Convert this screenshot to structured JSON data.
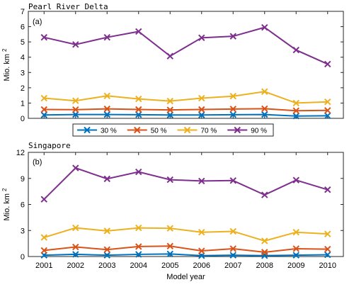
{
  "chart_data": [
    {
      "type": "line",
      "title": "Pearl River Delta",
      "panel_label": "(a)",
      "xlabel": "",
      "ylabel": "Mio. km",
      "ylabel_superscript": "2",
      "x": [
        2001,
        2002,
        2003,
        2004,
        2005,
        2006,
        2007,
        2008,
        2009,
        2010
      ],
      "xlim": [
        2000.5,
        2010.5
      ],
      "ylim": [
        0,
        7
      ],
      "yticks": [
        0,
        1,
        2,
        3,
        4,
        5,
        6,
        7
      ],
      "grid": false,
      "marker": "x",
      "legend_position": "bottom-center",
      "series": [
        {
          "name": "30 %",
          "color": "#0072BD",
          "values": [
            0.22,
            0.25,
            0.25,
            0.24,
            0.22,
            0.22,
            0.24,
            0.25,
            0.15,
            0.17
          ]
        },
        {
          "name": "50 %",
          "color": "#D95319",
          "values": [
            0.58,
            0.57,
            0.62,
            0.58,
            0.55,
            0.58,
            0.61,
            0.63,
            0.5,
            0.52
          ]
        },
        {
          "name": "70 %",
          "color": "#EDB120",
          "values": [
            1.32,
            1.15,
            1.47,
            1.27,
            1.13,
            1.32,
            1.45,
            1.75,
            1.0,
            1.08
          ]
        },
        {
          "name": "90 %",
          "color": "#7E2F8E",
          "values": [
            5.3,
            4.83,
            5.3,
            5.68,
            4.07,
            5.27,
            5.37,
            5.95,
            4.47,
            3.55
          ]
        }
      ]
    },
    {
      "type": "line",
      "title": "Singapore",
      "panel_label": "(b)",
      "xlabel": "Model year",
      "ylabel": "Mio. km",
      "ylabel_superscript": "2",
      "x": [
        2001,
        2002,
        2003,
        2004,
        2005,
        2006,
        2007,
        2008,
        2009,
        2010
      ],
      "xlim": [
        2000.5,
        2010.5
      ],
      "ylim": [
        0,
        12
      ],
      "yticks": [
        0,
        3,
        6,
        9,
        12
      ],
      "xticks": [
        "2001",
        "2002",
        "2003",
        "2004",
        "2005",
        "2006",
        "2007",
        "2008",
        "2009",
        "2010"
      ],
      "grid": false,
      "marker": "x",
      "series": [
        {
          "color": "#0072BD",
          "values": [
            0.15,
            0.25,
            0.15,
            0.25,
            0.3,
            0.1,
            0.15,
            0.1,
            0.15,
            0.2
          ]
        },
        {
          "color": "#D95319",
          "values": [
            0.7,
            1.1,
            0.8,
            1.15,
            1.2,
            0.65,
            0.9,
            0.5,
            0.9,
            0.85
          ]
        },
        {
          "color": "#EDB120",
          "values": [
            2.2,
            3.3,
            2.95,
            3.3,
            3.25,
            2.8,
            2.9,
            1.8,
            2.8,
            2.6
          ]
        },
        {
          "color": "#7E2F8E",
          "values": [
            6.6,
            10.2,
            8.95,
            9.75,
            8.85,
            8.7,
            8.75,
            7.1,
            8.8,
            7.7
          ]
        }
      ]
    }
  ]
}
